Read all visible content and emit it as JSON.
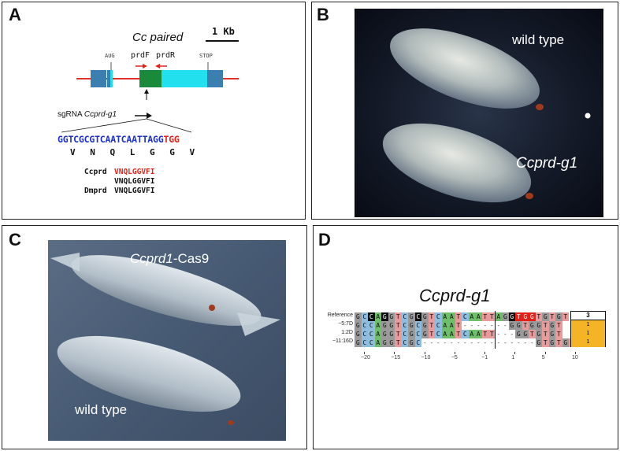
{
  "panels": {
    "a": {
      "label": "A",
      "gene_name": "Cc paired",
      "scale_label": "1 Kb",
      "aug_label": "AUG",
      "stop_label": "STOP",
      "primer_f": "prdF",
      "primer_r": "prdR",
      "sgrna_label": "sgRNA",
      "sgrna_name": "Ccprd-g1",
      "target_seq": "GGTCGCGTCAATCAATTAGG",
      "pam_seq": "TGG",
      "aa_seq": "V N Q L G G V",
      "align": [
        {
          "name": "Ccprd",
          "seq": "VNQLGGVFI",
          "highlight": true
        },
        {
          "name": "",
          "seq": "VNQLGGVFI",
          "highlight": false
        },
        {
          "name": "Dmprd",
          "seq": "VNQLGGVFI",
          "highlight": false
        }
      ]
    },
    "b": {
      "label": "B",
      "caption_top": "wild type",
      "caption_bottom": "Ccprd-g1"
    },
    "c": {
      "label": "C",
      "caption_top_italic": "Ccprd1",
      "caption_top_rest": "-Cas9",
      "caption_bottom": "wild type"
    },
    "d": {
      "label": "D",
      "title": "Ccprd-g1",
      "count_header": "3",
      "rows": [
        {
          "label": "Reference",
          "seq": "GCCAGGTCGCGTCAATCAATTAGGTGGTGTGT",
          "count": ""
        },
        {
          "label": "−5:7D",
          "seq": "GCCAGGTCGCGTCAAT-------GGTGGTGT",
          "count": "1"
        },
        {
          "label": "1:2D",
          "seq": "GCCAGGTCGCGTCAATCAATT---GGTGTGT",
          "count": "1"
        },
        {
          "label": "−11:16D",
          "seq": "GCCAGGTCGC-----------------GTGTGT",
          "count": "1"
        },
        {
          "label": "",
          "seq": "",
          "count": ""
        }
      ],
      "axis_ticks": [
        "−20",
        "−15",
        "−10",
        "−5",
        "−1",
        "1",
        "5",
        "10"
      ]
    }
  },
  "colors": {
    "exon_blue": "#3a7fb0",
    "exon_cyan": "#22e0ee",
    "exon_green": "#1a8a3a",
    "intron_red": "#e0322a",
    "seq_blue": "#1a2fd0",
    "seq_red": "#e0221a",
    "count_orange": "#f5b326"
  }
}
